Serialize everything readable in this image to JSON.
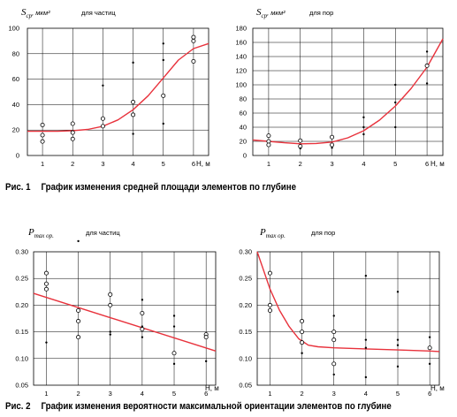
{
  "captions": {
    "fig1_num": "Рис. 1",
    "fig1_text": "График изменения средней площади элементов по глубине",
    "fig2_num": "Рис. 2",
    "fig2_text": "График изменения вероятности максимальной ориентации элементов по глубине"
  },
  "colors": {
    "curve": "#e8323c",
    "grid": "#000000",
    "points": "#000000"
  },
  "chart_data": [
    {
      "type": "scatter",
      "ylabel_main": "S",
      "ylabel_sub": "ср",
      "ylabel_unit": ", мкм²",
      "subtitle": "для частиц",
      "xlabel": "Н, м",
      "xlim": [
        0.5,
        6.5
      ],
      "ylim": [
        0,
        100
      ],
      "xticks": [
        "1",
        "2",
        "3",
        "4",
        "5",
        "6"
      ],
      "yticks": [
        "0",
        "20",
        "40",
        "60",
        "80",
        "100"
      ],
      "grid": true,
      "points_open": [
        [
          1,
          24
        ],
        [
          1,
          16
        ],
        [
          1,
          11
        ],
        [
          2,
          25
        ],
        [
          2,
          18
        ],
        [
          2,
          13
        ],
        [
          3,
          29
        ],
        [
          3,
          23
        ],
        [
          4,
          42
        ],
        [
          4,
          32
        ],
        [
          5,
          47
        ],
        [
          6,
          93
        ],
        [
          6,
          90
        ],
        [
          6,
          74
        ]
      ],
      "points_dot": [
        [
          3,
          55
        ],
        [
          4,
          73
        ],
        [
          4,
          17
        ],
        [
          5,
          88
        ],
        [
          5,
          75
        ],
        [
          5,
          25
        ]
      ],
      "trend": [
        [
          0.5,
          19
        ],
        [
          1,
          19
        ],
        [
          1.5,
          19
        ],
        [
          2,
          19.5
        ],
        [
          2.5,
          20.5
        ],
        [
          3,
          23
        ],
        [
          3.5,
          28
        ],
        [
          4,
          36
        ],
        [
          4.5,
          47
        ],
        [
          5,
          61
        ],
        [
          5.5,
          75
        ],
        [
          6,
          84
        ],
        [
          6.5,
          88
        ]
      ]
    },
    {
      "type": "scatter",
      "ylabel_main": "S",
      "ylabel_sub": "ср",
      "ylabel_unit": ", мкм²",
      "subtitle": "для пор",
      "xlabel": "Н, м",
      "xlim": [
        0.5,
        6.5
      ],
      "ylim": [
        0,
        180
      ],
      "xticks": [
        "1",
        "2",
        "3",
        "4",
        "5",
        "6"
      ],
      "yticks": [
        "0",
        "20",
        "40",
        "60",
        "80",
        "100",
        "120",
        "140",
        "160",
        "180"
      ],
      "grid": true,
      "points_open": [
        [
          1,
          28
        ],
        [
          1,
          20
        ],
        [
          1,
          15
        ],
        [
          2,
          21
        ],
        [
          2,
          13
        ],
        [
          3,
          26
        ],
        [
          3,
          15
        ],
        [
          6,
          127
        ]
      ],
      "points_dot": [
        [
          2,
          10
        ],
        [
          3,
          11
        ],
        [
          4,
          54
        ],
        [
          4,
          40
        ],
        [
          4,
          30
        ],
        [
          5,
          100
        ],
        [
          5,
          75
        ],
        [
          5,
          40
        ],
        [
          6,
          147
        ],
        [
          6,
          102
        ]
      ],
      "trend": [
        [
          0.5,
          22
        ],
        [
          1,
          20
        ],
        [
          1.5,
          18
        ],
        [
          2,
          16.5
        ],
        [
          2.5,
          17
        ],
        [
          3,
          19
        ],
        [
          3.5,
          25
        ],
        [
          4,
          35
        ],
        [
          4.5,
          50
        ],
        [
          5,
          70
        ],
        [
          5.5,
          95
        ],
        [
          6,
          125
        ],
        [
          6.5,
          165
        ]
      ]
    },
    {
      "type": "scatter",
      "ylabel_main": "P",
      "ylabel_sub": "max ор.",
      "subtitle": "для частиц",
      "xlabel": "Н, м",
      "xlim": [
        0.6,
        6.3
      ],
      "ylim": [
        0.05,
        0.3
      ],
      "xticks": [
        "1",
        "2",
        "3",
        "4",
        "5",
        "6"
      ],
      "yticks": [
        "0.05",
        "0.10",
        "0.15",
        "0.20",
        "0.25",
        "0.30"
      ],
      "grid": true,
      "points_open": [
        [
          1,
          0.26
        ],
        [
          1,
          0.24
        ],
        [
          1,
          0.23
        ],
        [
          2,
          0.19
        ],
        [
          2,
          0.17
        ],
        [
          2,
          0.14
        ],
        [
          3,
          0.22
        ],
        [
          3,
          0.2
        ],
        [
          4,
          0.185
        ],
        [
          4,
          0.155
        ],
        [
          5,
          0.11
        ],
        [
          6,
          0.145
        ],
        [
          6,
          0.14
        ]
      ],
      "points_dot": [
        [
          1,
          0.13
        ],
        [
          2,
          0.32
        ],
        [
          3,
          0.15
        ],
        [
          3,
          0.145
        ],
        [
          4,
          0.21
        ],
        [
          4,
          0.16
        ],
        [
          4,
          0.14
        ],
        [
          5,
          0.18
        ],
        [
          5,
          0.16
        ],
        [
          5,
          0.09
        ],
        [
          6,
          0.095
        ]
      ],
      "trend": [
        [
          0.6,
          0.222
        ],
        [
          6.3,
          0.114
        ]
      ]
    },
    {
      "type": "scatter",
      "ylabel_main": "P",
      "ylabel_sub": "max ор.",
      "subtitle": "для пор",
      "xlabel": "Н, м",
      "xlim": [
        0.6,
        6.3
      ],
      "ylim": [
        0.05,
        0.3
      ],
      "xticks": [
        "1",
        "2",
        "3",
        "4",
        "5",
        "6"
      ],
      "yticks": [
        "0.05",
        "0.10",
        "0.15",
        "0.20",
        "0.25",
        "0.30"
      ],
      "grid": true,
      "points_open": [
        [
          1,
          0.26
        ],
        [
          1,
          0.2
        ],
        [
          1,
          0.19
        ],
        [
          2,
          0.17
        ],
        [
          2,
          0.15
        ],
        [
          2,
          0.13
        ],
        [
          3,
          0.15
        ],
        [
          3,
          0.135
        ],
        [
          3,
          0.09
        ],
        [
          6,
          0.12
        ]
      ],
      "points_dot": [
        [
          2,
          0.11
        ],
        [
          3,
          0.18
        ],
        [
          3,
          0.07
        ],
        [
          4,
          0.255
        ],
        [
          4,
          0.135
        ],
        [
          4,
          0.12
        ],
        [
          4,
          0.065
        ],
        [
          5,
          0.225
        ],
        [
          5,
          0.135
        ],
        [
          5,
          0.125
        ],
        [
          5,
          0.085
        ],
        [
          6,
          0.14
        ],
        [
          6,
          0.09
        ]
      ],
      "trend": [
        [
          0.6,
          0.3
        ],
        [
          1,
          0.23
        ],
        [
          1.3,
          0.19
        ],
        [
          1.6,
          0.16
        ],
        [
          1.9,
          0.137
        ],
        [
          2.2,
          0.125
        ],
        [
          2.5,
          0.122
        ],
        [
          3,
          0.12
        ],
        [
          4,
          0.118
        ],
        [
          5,
          0.116
        ],
        [
          6,
          0.114
        ],
        [
          6.3,
          0.113
        ]
      ]
    }
  ]
}
